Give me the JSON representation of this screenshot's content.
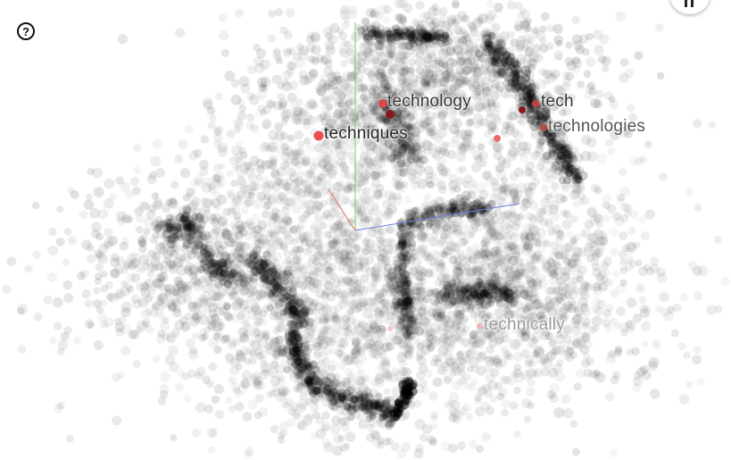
{
  "app": {
    "help_icon": "question-circle-icon",
    "help_glyph": "?",
    "corner_icon": "pause-icon"
  },
  "projection": {
    "selected_color": "#e84040",
    "point_color": "#000000",
    "axis_colors": {
      "x": "#e07070",
      "y": "#6fd06f",
      "z": "#6f7fe0"
    }
  },
  "labels": [
    {
      "key": "technology",
      "text": "technology"
    },
    {
      "key": "tech",
      "text": "tech"
    },
    {
      "key": "techniques",
      "text": "techniques"
    },
    {
      "key": "technologies",
      "text": "technologies"
    },
    {
      "key": "technically",
      "text": "technically"
    }
  ]
}
